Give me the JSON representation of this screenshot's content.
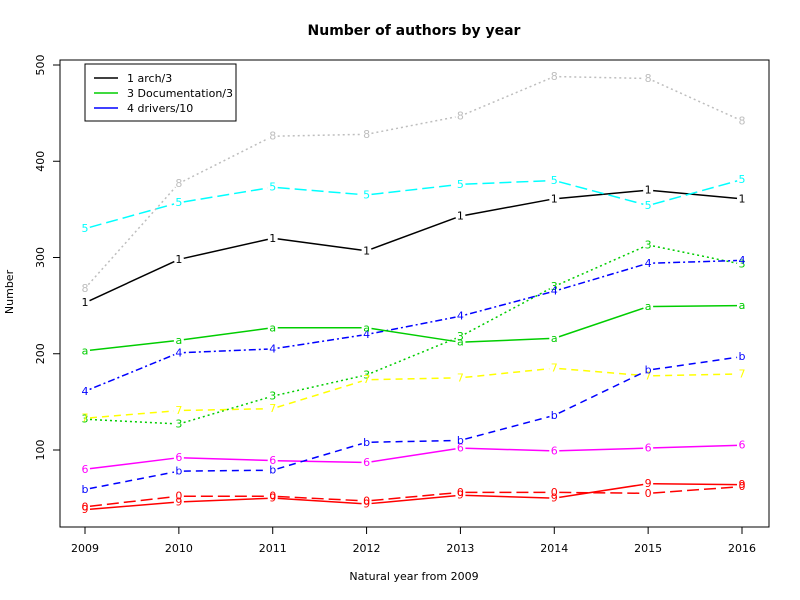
{
  "chart_data": {
    "type": "line",
    "title": "Number of authors by year",
    "xlabel": "Natural year from 2009",
    "ylabel": "Number",
    "x": [
      2009,
      2010,
      2011,
      2012,
      2013,
      2014,
      2015,
      2016
    ],
    "xlim": [
      2009,
      2016
    ],
    "ylim": [
      33,
      512
    ],
    "yticks": [
      100,
      200,
      300,
      400,
      500
    ],
    "grid": false,
    "legend": {
      "position": "top-left",
      "entries": [
        {
          "label": "1 arch/3",
          "color": "#000000"
        },
        {
          "label": "3 Documentation/3",
          "color": "#00cd00"
        },
        {
          "label": "4 drivers/10",
          "color": "#0000ff"
        }
      ]
    },
    "series": [
      {
        "marker": "1",
        "color": "#000000",
        "dash": "solid",
        "values": [
          253,
          298,
          320,
          307,
          343,
          361,
          370,
          361
        ]
      },
      {
        "marker": "3",
        "color": "#00cd00",
        "dash": "dotted",
        "values": [
          132,
          127,
          156,
          178,
          218,
          270,
          313,
          293
        ]
      },
      {
        "marker": "4",
        "color": "#0000ff",
        "dash": "dotdash",
        "values": [
          161,
          201,
          205,
          220,
          239,
          265,
          294,
          297
        ]
      },
      {
        "marker": "5",
        "color": "#00ffff",
        "dash": "longdash",
        "values": [
          330,
          357,
          373,
          365,
          376,
          380,
          354,
          381
        ]
      },
      {
        "marker": "6",
        "color": "#ff00ff",
        "dash": "solid",
        "values": [
          80,
          92,
          89,
          87,
          102,
          99,
          102,
          105
        ]
      },
      {
        "marker": "7",
        "color": "#ffff00",
        "dash": "dashed",
        "values": [
          133,
          141,
          143,
          173,
          175,
          185,
          177,
          179
        ]
      },
      {
        "marker": "8",
        "color": "#bebebe",
        "dash": "dotted",
        "values": [
          268,
          377,
          426,
          428,
          447,
          488,
          486,
          442
        ]
      },
      {
        "marker": "a",
        "color": "#00cd00",
        "dash": "solid",
        "values": [
          203,
          214,
          227,
          227,
          212,
          216,
          249,
          250
        ]
      },
      {
        "marker": "b",
        "color": "#0000ff",
        "dash": "dashed",
        "values": [
          59,
          78,
          79,
          108,
          110,
          136,
          183,
          197
        ]
      },
      {
        "marker": "0",
        "color": "#ff0000",
        "dash": "longdash",
        "values": [
          41,
          52,
          52,
          47,
          56,
          56,
          55,
          62
        ]
      },
      {
        "marker": "9",
        "color": "#ff0000",
        "dash": "solid",
        "values": [
          38,
          46,
          50,
          44,
          53,
          50,
          65,
          64
        ]
      }
    ]
  }
}
